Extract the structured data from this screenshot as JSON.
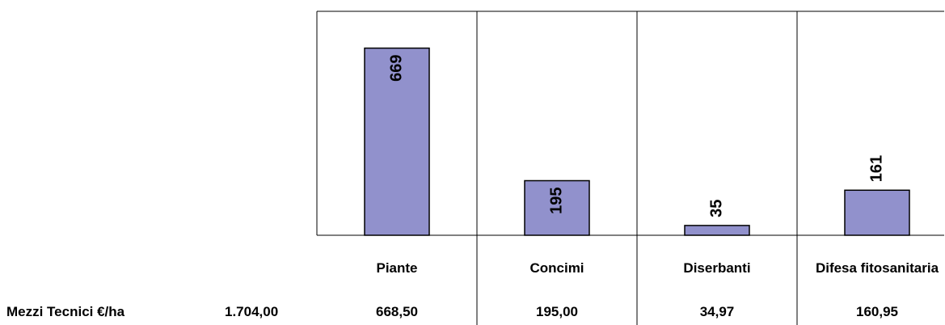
{
  "chart_data": {
    "type": "bar",
    "categories": [
      "Piante",
      "Concimi",
      "Diserbanti",
      "Difesa fitosanitaria"
    ],
    "values": [
      668.5,
      195.0,
      34.97,
      160.95
    ],
    "value_labels": [
      "669",
      "195",
      "35",
      "161"
    ],
    "color": "#9191cc",
    "ylim": [
      0,
      800
    ],
    "table": {
      "row_label": "Mezzi Tecnici €/ha",
      "total": "1.704,00",
      "cells": [
        "668,50",
        "195,00",
        "34,97",
        "160,95"
      ]
    }
  }
}
